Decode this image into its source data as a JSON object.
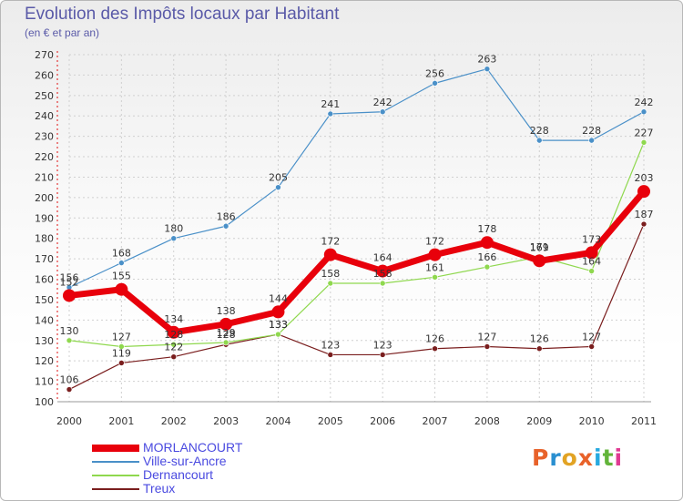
{
  "header": {
    "title": "Evolution des Impôts locaux par Habitant",
    "subtitle": "(en € et par an)"
  },
  "logo": {
    "text": "Proxiti",
    "colors": [
      "#e8622a",
      "#2a8fd0",
      "#e2a324",
      "#e8622a",
      "#27a9df",
      "#62b43a",
      "#e03a92"
    ]
  },
  "chart_data": {
    "type": "line",
    "title": "Evolution des Impôts locaux par Habitant",
    "subtitle": "(en € et par an)",
    "xlabel": "",
    "ylabel": "",
    "x": [
      "2000",
      "2001",
      "2002",
      "2003",
      "2004",
      "2005",
      "2006",
      "2007",
      "2008",
      "2009",
      "2010",
      "2011"
    ],
    "ylim": [
      100,
      270
    ],
    "yticks": [
      100,
      110,
      120,
      130,
      140,
      150,
      160,
      170,
      180,
      190,
      200,
      210,
      220,
      230,
      240,
      250,
      260,
      270
    ],
    "grid": true,
    "legend_position": "bottom-left",
    "series": [
      {
        "name": "MORLANCOURT",
        "color": "#e8000b",
        "values": [
          152,
          155,
          134,
          138,
          144,
          172,
          164,
          172,
          178,
          169,
          173,
          203
        ],
        "labels": [
          "152",
          "155",
          "134",
          "138",
          "144",
          "172",
          "164",
          "172",
          "178",
          "169",
          "173",
          "203"
        ]
      },
      {
        "name": "Ville-sur-Ancre",
        "color": "#4a90c8",
        "values": [
          156,
          168,
          180,
          186,
          205,
          241,
          242,
          256,
          263,
          228,
          228,
          242
        ],
        "labels": [
          "156",
          "168",
          "180",
          "186",
          "205",
          "241",
          "242",
          "256",
          "263",
          "228",
          "228",
          "242"
        ]
      },
      {
        "name": "Dernancourt",
        "color": "#8fd84e",
        "values": [
          130,
          127,
          128,
          129,
          133,
          158,
          158,
          161,
          166,
          171,
          164,
          227
        ],
        "labels": [
          "130",
          "127",
          "128",
          "129",
          "133",
          "158",
          "158",
          "161",
          "166",
          "171",
          "164",
          "227"
        ]
      },
      {
        "name": "Treux",
        "color": "#7a1e1e",
        "values": [
          106,
          119,
          122,
          128,
          133,
          123,
          123,
          126,
          127,
          126,
          127,
          187
        ],
        "labels": [
          "106",
          "119",
          "122",
          "128",
          "133",
          "123",
          "123",
          "126",
          "127",
          "126",
          "127",
          "187"
        ]
      }
    ]
  }
}
